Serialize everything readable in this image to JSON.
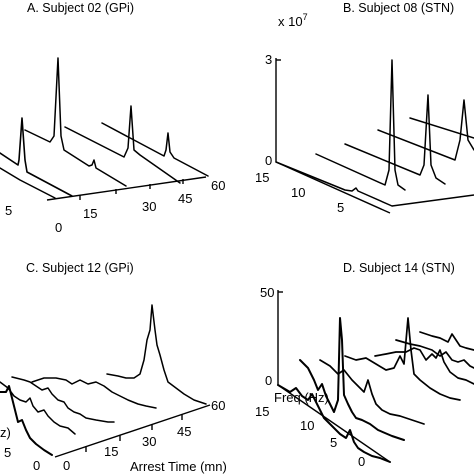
{
  "chart_data": [
    {
      "panel": "A",
      "type": "line",
      "title": "A. Subject 02 (GPi)",
      "time_ticks": [
        "0",
        "15",
        "30",
        "45",
        "60"
      ],
      "freq_ticks": [
        "0",
        "5"
      ],
      "series": [
        {
          "time": 0,
          "peak_freq": 4,
          "peak_height": 0.45
        },
        {
          "time": 15,
          "peak_freq": 4,
          "peak_height": 0.2
        },
        {
          "time": 30,
          "peak_freq": 4,
          "peak_height": 0.95
        },
        {
          "time": 45,
          "peak_freq": 4,
          "peak_height": 0.1
        },
        {
          "time": 60,
          "peak_freq": 4,
          "peak_height": 0.6
        }
      ]
    },
    {
      "panel": "B",
      "type": "line",
      "title": "B. Subject 08 (STN)",
      "scale_label": "x 10",
      "scale_exp": "7",
      "y_ticks": [
        "0",
        "3"
      ],
      "freq_ticks": [
        "15",
        "10",
        "5"
      ],
      "series": [
        {
          "time": 0,
          "peak_freq": 4,
          "peak_height": 0.05
        },
        {
          "time": 15,
          "peak_freq": 4,
          "peak_height": 0.9
        },
        {
          "time": 30,
          "peak_freq": 4,
          "peak_height": 0.7
        }
      ]
    },
    {
      "panel": "C",
      "type": "line",
      "title": "C. Subject 12 (GPi)",
      "time_ticks": [
        "0",
        "15",
        "30",
        "45",
        "60"
      ],
      "xlabel": "Arrest Time (mn)",
      "ylabel_fragment": "z)",
      "freq_ticks": [
        "0",
        "5"
      ]
    },
    {
      "panel": "D",
      "type": "line",
      "title": "D. Subject 14 (STN)",
      "y_ticks": [
        "50",
        "0"
      ],
      "ylabel": "Freq (Hz)",
      "freq_ticks": [
        "15",
        "10",
        "5",
        "0"
      ]
    }
  ]
}
